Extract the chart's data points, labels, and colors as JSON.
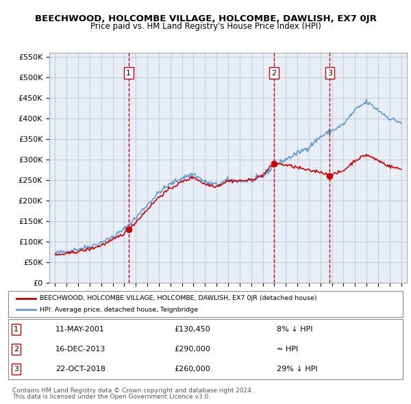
{
  "title": "BEECHWOOD, HOLCOMBE VILLAGE, HOLCOMBE, DAWLISH, EX7 0JR",
  "subtitle": "Price paid vs. HM Land Registry's House Price Index (HPI)",
  "legend_red": "BEECHWOOD, HOLCOMBE VILLAGE, HOLCOMBE, DAWLISH, EX7 0JR (detached house)",
  "legend_blue": "HPI: Average price, detached house, Teignbridge",
  "footnote1": "Contains HM Land Registry data © Crown copyright and database right 2024.",
  "footnote2": "This data is licensed under the Open Government Licence v3.0.",
  "sales": [
    {
      "num": 1,
      "date": "11-MAY-2001",
      "price": "£130,450",
      "rel": "8% ↓ HPI",
      "x_year": 2001.37
    },
    {
      "num": 2,
      "date": "16-DEC-2013",
      "price": "£290,000",
      "rel": "≈ HPI",
      "x_year": 2013.96
    },
    {
      "num": 3,
      "date": "22-OCT-2018",
      "price": "£260,000",
      "rel": "29% ↓ HPI",
      "x_year": 2018.81
    }
  ],
  "ylim": [
    0,
    560000
  ],
  "xlim": [
    1994.5,
    2025.5
  ],
  "red_color": "#cc0000",
  "blue_color": "#5b9bd5",
  "grid_color": "#cccccc",
  "bg_color": "#e8eef7",
  "sale_marker_color": "#cc0000",
  "table_border_color": "#888888"
}
